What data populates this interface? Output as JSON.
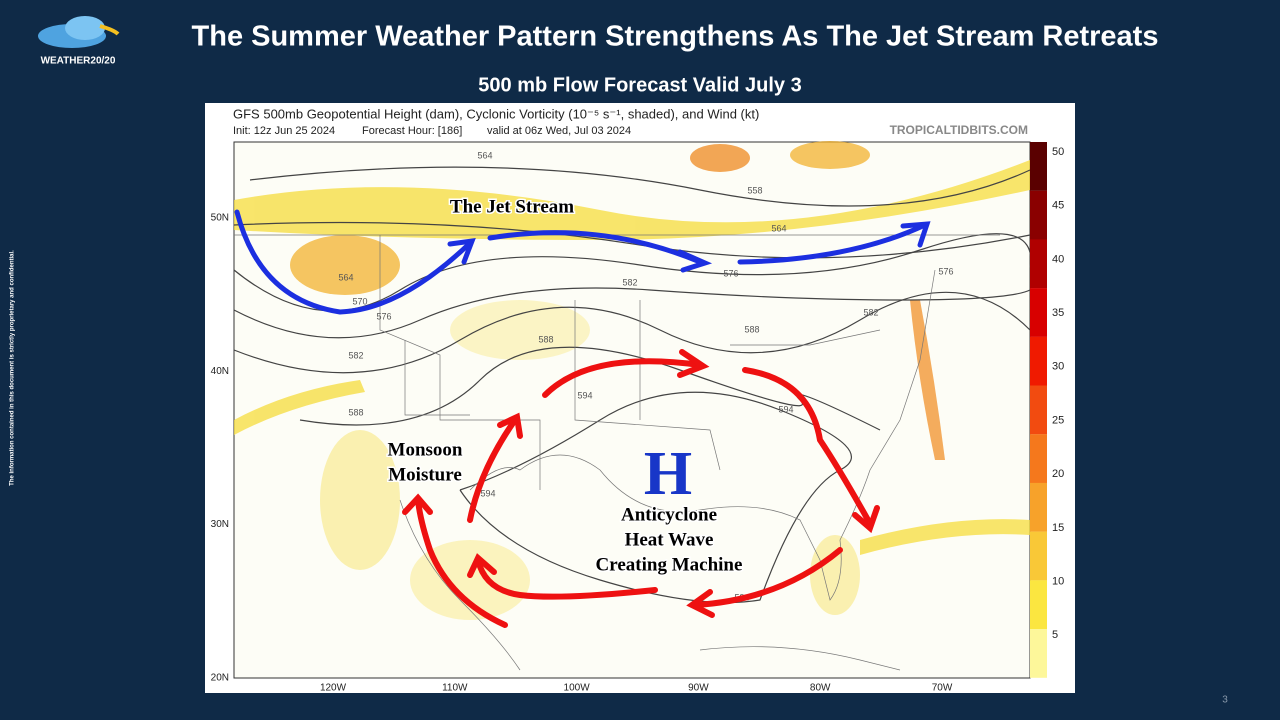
{
  "header": {
    "logo": "WEATHER20/20",
    "title": "The Summer Weather Pattern Strengthens As The Jet Stream Retreats",
    "subtitle": "500 mb Flow Forecast Valid July 3"
  },
  "side_note": "The information contained in this document is strictly proprietary and confidential.",
  "map": {
    "title": "GFS 500mb Geopotential Height (dam), Cyclonic Vorticity (10⁻⁵ s⁻¹, shaded), and Wind (kt)",
    "init": "Init: 12z Jun 25 2024",
    "forecast_hour": "Forecast Hour: [186]",
    "valid": "valid at 06z Wed, Jul 03 2024",
    "source": "TROPICALTIDBITS.COM",
    "lat_labels": [
      "50N",
      "40N",
      "30N",
      "20N"
    ],
    "lon_labels": [
      "120W",
      "110W",
      "100W",
      "90W",
      "80W",
      "70W"
    ],
    "colorbar": [
      50,
      45,
      40,
      35,
      30,
      25,
      20,
      15,
      10,
      5
    ],
    "contour_labels": [
      "564",
      "558",
      "564",
      "564",
      "570",
      "576",
      "576",
      "576",
      "582",
      "582",
      "582",
      "588",
      "588",
      "588",
      "594",
      "594",
      "594",
      "594"
    ],
    "annotations": {
      "jet": "The Jet Stream",
      "monsoon": [
        "Monsoon",
        "Moisture"
      ],
      "high": "H",
      "anticyclone": [
        "Anticyclone",
        "Heat Wave",
        "Creating Machine"
      ]
    }
  },
  "page_number": "3"
}
